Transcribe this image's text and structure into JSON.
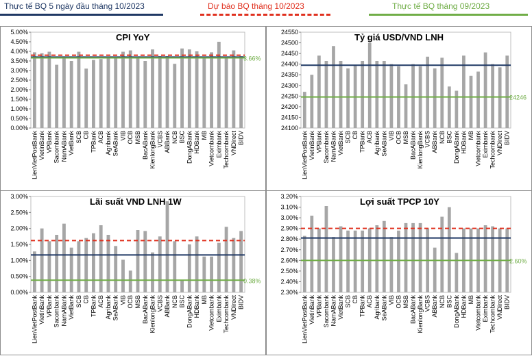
{
  "legend": {
    "actual_5days": {
      "label": "Thực tế BQ 5 ngày đầu tháng 10/2023",
      "color": "#1f3864"
    },
    "forecast": {
      "label": "Dự báo BQ tháng 10/2023",
      "color": "#e0301e"
    },
    "actual_prev": {
      "label": "Thực tế BQ tháng 09/2023",
      "color": "#70ad47"
    }
  },
  "bar_color": "#a6a6a6",
  "chart_data": [
    {
      "type": "bar",
      "title": "CPI YoY",
      "categories": [
        "LienVietPostBank",
        "VietinBank",
        "VPBank",
        "Sacombank",
        "NamABank",
        "VietBank",
        "SCB",
        "CB",
        "TPBank",
        "ACB",
        "Agribank",
        "SeABank",
        "VIB",
        "OCB",
        "MSB",
        "BacABank",
        "KienlongBank",
        "VCBS",
        "ABBank",
        "NCB",
        "BSC",
        "DongABank",
        "HDBank",
        "MB",
        "Vietcombank",
        "Eximbank",
        "Techcombank",
        "VNDirect",
        "BIDV"
      ],
      "values": [
        3.95,
        3.9,
        3.98,
        3.3,
        3.68,
        3.5,
        3.98,
        3.1,
        3.55,
        3.6,
        3.65,
        3.7,
        3.98,
        4.05,
        3.7,
        3.5,
        4.1,
        3.75,
        3.75,
        3.35,
        4.15,
        4.1,
        4.0,
        3.7,
        3.95,
        4.5,
        3.7,
        4.05,
        3.75
      ],
      "ylim": [
        0,
        5
      ],
      "yticks": [
        "0.00%",
        "0.50%",
        "1.00%",
        "1.50%",
        "2.00%",
        "2.50%",
        "3.00%",
        "3.50%",
        "4.00%",
        "4.50%",
        "5.00%"
      ],
      "lines": {
        "actual_5days": 3.7,
        "forecast": 3.8,
        "actual_prev": 3.66
      },
      "annotation": "3.66%"
    },
    {
      "type": "bar",
      "title": "Tỷ giá USD/VND LNH",
      "categories": [
        "LienVietPostBank",
        "VietinBank",
        "VPBank",
        "Sacombank",
        "NamABank",
        "VietBank",
        "SCB",
        "CB",
        "TPBank",
        "ACB",
        "Agribank",
        "SeABank",
        "VIB",
        "OCB",
        "MSB",
        "BacABank",
        "KienlongBank",
        "VCBS",
        "ABBank",
        "NCB",
        "BSC",
        "DongABank",
        "HDBank",
        "MB",
        "Vietcombank",
        "Eximbank",
        "Techcombank",
        "VNDirect",
        "BIDV"
      ],
      "values": [
        24270,
        24350,
        24440,
        24415,
        24485,
        24415,
        24380,
        24395,
        24415,
        24500,
        24415,
        24415,
        24400,
        24390,
        24305,
        24400,
        24390,
        24435,
        24380,
        24430,
        24295,
        24275,
        24440,
        24345,
        24365,
        24455,
        24400,
        24385,
        24440
      ],
      "ylim": [
        24100,
        24550
      ],
      "yticks": [
        "24100",
        "24150",
        "24200",
        "24250",
        "24300",
        "24350",
        "24400",
        "24450",
        "24500",
        "24550"
      ],
      "lines": {
        "actual_5days": 24395,
        "actual_prev": 24246
      },
      "annotation": "24246"
    },
    {
      "type": "bar",
      "title": "Lãi suất VND LNH 1W",
      "categories": [
        "LienVietPostBank",
        "VietinBank",
        "VPBank",
        "Sacombank",
        "NamABank",
        "VietBank",
        "SCB",
        "CB",
        "TPBank",
        "ACB",
        "Agribank",
        "SeABank",
        "VIB",
        "OCB",
        "MSB",
        "BacABank",
        "KienlongBank",
        "VCBS",
        "ABBank",
        "NCB",
        "BSC",
        "DongABank",
        "HDBank",
        "MB",
        "Vietcombank",
        "Eximbank",
        "Techcombank",
        "VNDirect",
        "BIDV"
      ],
      "values": [
        1.28,
        2.0,
        1.6,
        1.8,
        2.15,
        1.4,
        1.6,
        1.7,
        1.85,
        2.1,
        1.8,
        1.45,
        1.02,
        0.68,
        1.95,
        1.92,
        1.25,
        1.75,
        2.85,
        1.6,
        0.38,
        1.5,
        1.75,
        1.12,
        1.12,
        1.55,
        2.05,
        1.7,
        1.92
      ],
      "ylim": [
        0,
        3
      ],
      "yticks": [
        "0.00%",
        "0.50%",
        "1.00%",
        "1.50%",
        "2.00%",
        "2.50%",
        "3.00%"
      ],
      "lines": {
        "actual_5days": 1.17,
        "forecast": 1.62,
        "actual_prev": 0.38
      },
      "annotation": "0.38%"
    },
    {
      "type": "bar",
      "title": "Lợi suất TPCP 10Y",
      "categories": [
        "LienVietPostBank",
        "VietinBank",
        "VPBank",
        "Sacombank",
        "NamABank",
        "VietBank",
        "SCB",
        "CB",
        "TPBank",
        "ACB",
        "Agribank",
        "SeABank",
        "VIB",
        "OCB",
        "MSB",
        "BacABank",
        "KienlongBank",
        "VCBS",
        "ABBank",
        "NCB",
        "BSC",
        "DongABank",
        "HDBank",
        "MB",
        "Vietcombank",
        "Eximbank",
        "Techcombank",
        "VNDirect",
        "BIDV"
      ],
      "values": [
        2.83,
        3.02,
        2.9,
        3.11,
        2.82,
        2.92,
        2.88,
        2.88,
        2.88,
        2.9,
        2.93,
        2.97,
        2.82,
        2.88,
        2.95,
        2.95,
        2.95,
        2.9,
        2.72,
        3.01,
        3.1,
        2.67,
        2.9,
        2.9,
        2.9,
        2.93,
        2.92,
        2.9,
        2.9
      ],
      "ylim": [
        2.3,
        3.2
      ],
      "yticks": [
        "2.30%",
        "2.40%",
        "2.50%",
        "2.60%",
        "2.70%",
        "2.80%",
        "2.90%",
        "3.00%",
        "3.10%",
        "3.20%"
      ],
      "lines": {
        "actual_5days": 2.81,
        "forecast": 2.9,
        "actual_prev": 2.6
      },
      "annotation": "2.60%"
    }
  ]
}
